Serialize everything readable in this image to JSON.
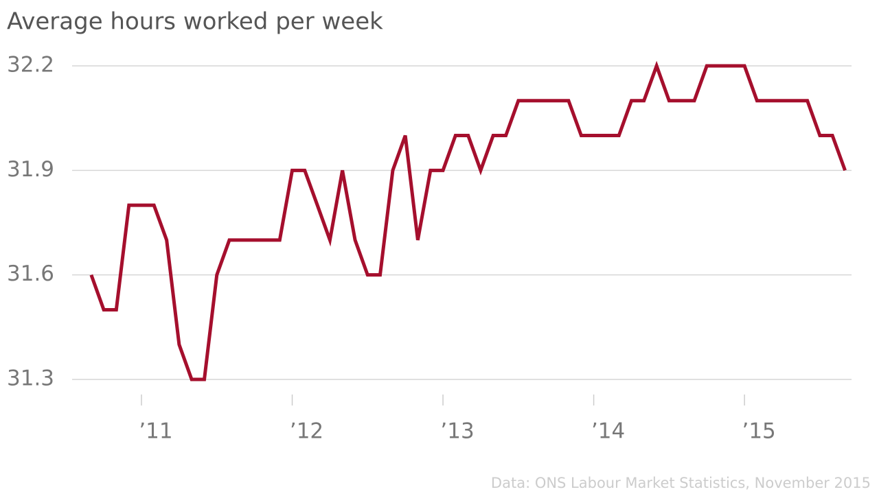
{
  "chart_data": {
    "type": "line",
    "title": "Average hours worked per week",
    "source": "Data: ONS Labour Market Statistics, November 2015",
    "color": "#a50f2d",
    "grid": true,
    "x": [
      2010.667,
      2010.75,
      2010.833,
      2010.917,
      2011,
      2011.083,
      2011.167,
      2011.25,
      2011.333,
      2011.417,
      2011.5,
      2011.583,
      2011.667,
      2011.75,
      2011.833,
      2011.917,
      2012,
      2012.083,
      2012.167,
      2012.25,
      2012.333,
      2012.417,
      2012.5,
      2012.583,
      2012.667,
      2012.75,
      2012.833,
      2012.917,
      2013,
      2013.083,
      2013.167,
      2013.25,
      2013.333,
      2013.417,
      2013.5,
      2013.583,
      2013.667,
      2013.75,
      2013.833,
      2013.917,
      2014,
      2014.083,
      2014.167,
      2014.25,
      2014.333,
      2014.417,
      2014.5,
      2014.583,
      2014.667,
      2014.75,
      2014.833,
      2014.917,
      2015,
      2015.083,
      2015.167,
      2015.25,
      2015.333,
      2015.417,
      2015.5,
      2015.583,
      2015.667
    ],
    "values": [
      31.6,
      31.5,
      31.5,
      31.8,
      31.8,
      31.8,
      31.7,
      31.4,
      31.3,
      31.3,
      31.6,
      31.7,
      31.7,
      31.7,
      31.7,
      31.7,
      31.9,
      31.9,
      31.8,
      31.7,
      31.9,
      31.7,
      31.6,
      31.6,
      31.9,
      32.0,
      31.7,
      31.9,
      31.9,
      32.0,
      32.0,
      31.9,
      32.0,
      32.0,
      32.1,
      32.1,
      32.1,
      32.1,
      32.1,
      32.0,
      32.0,
      32.0,
      32.0,
      32.1,
      32.1,
      32.2,
      32.1,
      32.1,
      32.1,
      32.2,
      32.2,
      32.2,
      32.2,
      32.1,
      32.1,
      32.1,
      32.1,
      32.1,
      32.0,
      32.0,
      31.9
    ],
    "xlim": [
      2010.54,
      2015.71
    ],
    "xticks": [
      {
        "value": 2011,
        "label": "’11"
      },
      {
        "value": 2012,
        "label": "’12"
      },
      {
        "value": 2013,
        "label": "’13"
      },
      {
        "value": 2014,
        "label": "’14"
      },
      {
        "value": 2015,
        "label": "’15"
      }
    ],
    "ylim": [
      31.3,
      32.2
    ],
    "yticks": [
      31.3,
      31.6,
      31.9,
      32.2
    ]
  }
}
